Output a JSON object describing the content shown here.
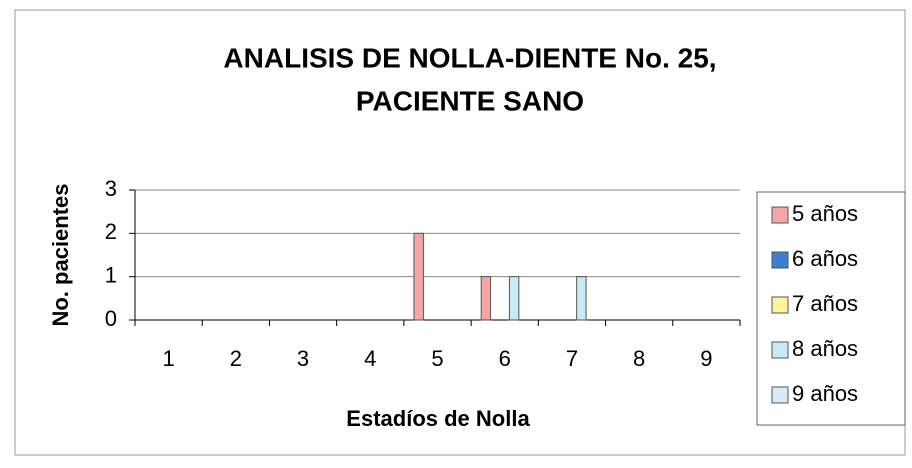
{
  "chart_data": {
    "type": "bar",
    "title": [
      "ANALISIS DE NOLLA-DIENTE No. 25,",
      "PACIENTE SANO"
    ],
    "x_label": "Estadíos de Nolla",
    "y_label": "No. pacientes",
    "categories": [
      1,
      2,
      3,
      4,
      5,
      6,
      7,
      8,
      9
    ],
    "series": [
      {
        "name": "5 años",
        "color": "#f4a6a6",
        "values": [
          0,
          0,
          0,
          0,
          2,
          1,
          0,
          0,
          0
        ]
      },
      {
        "name": "6 años",
        "color": "#3a7fd0",
        "values": [
          0,
          0,
          0,
          0,
          0,
          0,
          0,
          0,
          0
        ]
      },
      {
        "name": "7 años",
        "color": "#fff3a0",
        "values": [
          0,
          0,
          0,
          0,
          0,
          0,
          0,
          0,
          0
        ]
      },
      {
        "name": "8 años",
        "color": "#c6ecf5",
        "values": [
          0,
          0,
          0,
          0,
          0,
          1,
          1,
          0,
          0
        ]
      },
      {
        "name": "9 años",
        "color": "#dbe8f7",
        "values": [
          0,
          0,
          0,
          0,
          0,
          0,
          0,
          0,
          0
        ]
      }
    ],
    "ylim": [
      0,
      3
    ],
    "yticks": [
      0,
      1,
      2,
      3
    ],
    "grid": true,
    "legend": "right"
  }
}
